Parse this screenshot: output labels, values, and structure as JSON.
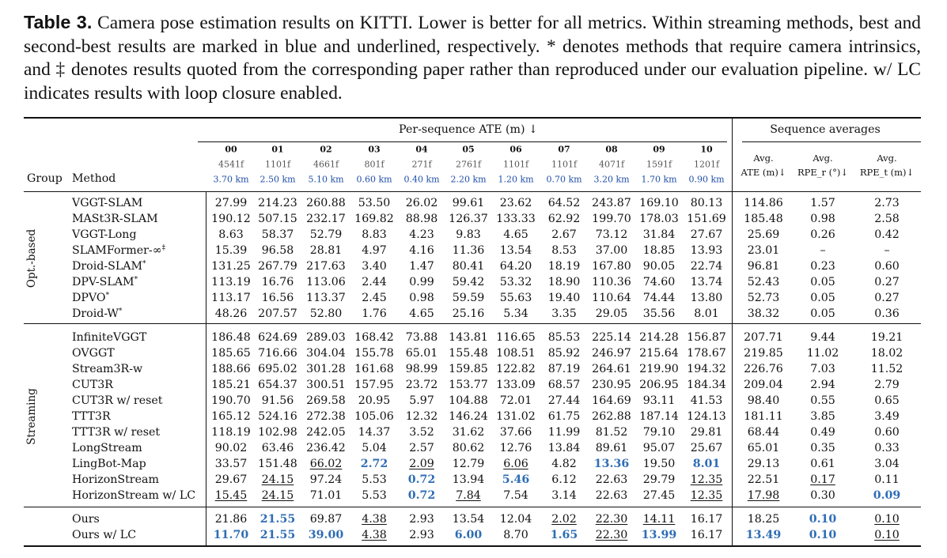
{
  "caption": {
    "label": "Table 3.",
    "text": " Camera pose estimation results on KITTI. Lower is better for all metrics. Within streaming methods, best and second-best results are marked in blue and underlined, respectively. * denotes methods that require camera intrinsics, and ‡ denotes results quoted from the corresponding paper rather than reproduced under our evaluation pipeline. w/ LC indicates results with loop closure enabled."
  },
  "header": {
    "per_sequence": "Per-sequence ATE (m) ↓",
    "averages": "Sequence averages",
    "group_col": "Group",
    "method_col": "Method",
    "sequences": [
      {
        "id": "00",
        "frames": "4541f",
        "km": "3.70 km"
      },
      {
        "id": "01",
        "frames": "1101f",
        "km": "2.50 km"
      },
      {
        "id": "02",
        "frames": "4661f",
        "km": "5.10 km"
      },
      {
        "id": "03",
        "frames": "801f",
        "km": "0.60 km"
      },
      {
        "id": "04",
        "frames": "271f",
        "km": "0.40 km"
      },
      {
        "id": "05",
        "frames": "2761f",
        "km": "2.20 km"
      },
      {
        "id": "06",
        "frames": "1101f",
        "km": "1.20 km"
      },
      {
        "id": "07",
        "frames": "1101f",
        "km": "0.70 km"
      },
      {
        "id": "08",
        "frames": "4071f",
        "km": "3.20 km"
      },
      {
        "id": "09",
        "frames": "1591f",
        "km": "1.70 km"
      },
      {
        "id": "10",
        "frames": "1201f",
        "km": "0.90 km"
      }
    ],
    "avg_cols": [
      {
        "top": "Avg.",
        "bottom": "ATE (m)↓"
      },
      {
        "top": "Avg.",
        "bottom": "RPE_r (°)↓"
      },
      {
        "top": "Avg.",
        "bottom": "RPE_t (m)↓"
      }
    ]
  },
  "groups": [
    {
      "name": "Opt.-based",
      "rows": [
        {
          "method": "VGGT-SLAM",
          "mark": "",
          "values": [
            "27.99",
            "214.23",
            "260.88",
            "53.50",
            "26.02",
            "99.61",
            "23.62",
            "64.52",
            "243.87",
            "169.10",
            "80.13"
          ],
          "avgs": [
            "114.86",
            "1.57",
            "2.73"
          ]
        },
        {
          "method": "MASt3R-SLAM",
          "mark": "",
          "values": [
            "190.12",
            "507.15",
            "232.17",
            "169.82",
            "88.98",
            "126.37",
            "133.33",
            "62.92",
            "199.70",
            "178.03",
            "151.69"
          ],
          "avgs": [
            "185.48",
            "0.98",
            "2.58"
          ]
        },
        {
          "method": "VGGT-Long",
          "mark": "",
          "values": [
            "8.63",
            "58.37",
            "52.79",
            "8.83",
            "4.23",
            "9.83",
            "4.65",
            "2.67",
            "73.12",
            "31.84",
            "27.67"
          ],
          "avgs": [
            "25.69",
            "0.26",
            "0.42"
          ]
        },
        {
          "method": "SLAMFormer-∞",
          "mark": "‡",
          "values": [
            "15.39",
            "96.58",
            "28.81",
            "4.97",
            "4.16",
            "11.36",
            "13.54",
            "8.53",
            "37.00",
            "18.85",
            "13.93"
          ],
          "avgs": [
            "23.01",
            "–",
            "–"
          ]
        },
        {
          "method": "Droid-SLAM",
          "mark": "*",
          "values": [
            "131.25",
            "267.79",
            "217.63",
            "3.40",
            "1.47",
            "80.41",
            "64.20",
            "18.19",
            "167.80",
            "90.05",
            "22.74"
          ],
          "avgs": [
            "96.81",
            "0.23",
            "0.60"
          ]
        },
        {
          "method": "DPV-SLAM",
          "mark": "*",
          "values": [
            "113.19",
            "16.76",
            "113.06",
            "2.44",
            "0.99",
            "59.42",
            "53.32",
            "18.90",
            "110.36",
            "74.60",
            "13.74"
          ],
          "avgs": [
            "52.43",
            "0.05",
            "0.27"
          ]
        },
        {
          "method": "DPVO",
          "mark": "*",
          "values": [
            "113.17",
            "16.56",
            "113.37",
            "2.45",
            "0.98",
            "59.59",
            "55.63",
            "19.40",
            "110.64",
            "74.44",
            "13.80"
          ],
          "avgs": [
            "52.73",
            "0.05",
            "0.27"
          ]
        },
        {
          "method": "Droid-W",
          "mark": "*",
          "values": [
            "48.26",
            "207.57",
            "52.80",
            "1.76",
            "4.65",
            "25.16",
            "5.34",
            "3.35",
            "29.05",
            "35.56",
            "8.01"
          ],
          "avgs": [
            "38.32",
            "0.05",
            "0.36"
          ]
        }
      ]
    },
    {
      "name": "Streaming",
      "rows": [
        {
          "method": "InfiniteVGGT",
          "mark": "",
          "values": [
            "186.48",
            "624.69",
            "289.03",
            "168.42",
            "73.88",
            "143.81",
            "116.65",
            "85.53",
            "225.14",
            "214.28",
            "156.87"
          ],
          "avgs": [
            "207.71",
            "9.44",
            "19.21"
          ]
        },
        {
          "method": "OVGGT",
          "mark": "",
          "values": [
            "185.65",
            "716.66",
            "304.04",
            "155.78",
            "65.01",
            "155.48",
            "108.51",
            "85.92",
            "246.97",
            "215.64",
            "178.67"
          ],
          "avgs": [
            "219.85",
            "11.02",
            "18.02"
          ]
        },
        {
          "method": "Stream3R-w",
          "mark": "",
          "values": [
            "188.66",
            "695.02",
            "301.28",
            "161.68",
            "98.99",
            "159.85",
            "122.82",
            "87.19",
            "264.61",
            "219.90",
            "194.32"
          ],
          "avgs": [
            "226.76",
            "7.03",
            "11.52"
          ]
        },
        {
          "method": "CUT3R",
          "mark": "",
          "values": [
            "185.21",
            "654.37",
            "300.51",
            "157.95",
            "23.72",
            "153.77",
            "133.09",
            "68.57",
            "230.95",
            "206.95",
            "184.34"
          ],
          "avgs": [
            "209.04",
            "2.94",
            "2.79"
          ]
        },
        {
          "method": "CUT3R w/ reset",
          "mark": "",
          "values": [
            "190.70",
            "91.56",
            "269.58",
            "20.95",
            "5.97",
            "104.88",
            "72.01",
            "27.44",
            "164.69",
            "93.11",
            "41.53"
          ],
          "avgs": [
            "98.40",
            "0.55",
            "0.65"
          ]
        },
        {
          "method": "TTT3R",
          "mark": "",
          "values": [
            "165.12",
            "524.16",
            "272.38",
            "105.06",
            "12.32",
            "146.24",
            "131.02",
            "61.75",
            "262.88",
            "187.14",
            "124.13"
          ],
          "avgs": [
            "181.11",
            "3.85",
            "3.49"
          ]
        },
        {
          "method": "TTT3R w/ reset",
          "mark": "",
          "values": [
            "118.19",
            "102.98",
            "242.05",
            "14.37",
            "3.52",
            "31.62",
            "37.66",
            "11.99",
            "81.52",
            "79.10",
            "29.81"
          ],
          "avgs": [
            "68.44",
            "0.49",
            "0.60"
          ]
        },
        {
          "method": "LongStream",
          "mark": "",
          "values": [
            "90.02",
            "63.46",
            "236.42",
            "5.04",
            "2.57",
            "80.62",
            "12.76",
            "13.84",
            "89.61",
            "95.07",
            "25.67"
          ],
          "avgs": [
            "65.01",
            "0.35",
            "0.33"
          ]
        },
        {
          "method": "LingBot-Map",
          "mark": "",
          "values": [
            "33.57",
            "151.48",
            "66.02",
            "2.72",
            "2.09",
            "12.79",
            "6.06",
            "4.82",
            "13.36",
            "19.50",
            "8.01"
          ],
          "avgs": [
            "29.13",
            "0.61",
            "3.04"
          ],
          "styles": [
            "",
            "",
            "u",
            "b",
            "u",
            "",
            "u",
            "",
            "b",
            "",
            "b"
          ],
          "avg_styles": [
            "",
            "",
            ""
          ]
        },
        {
          "method": "HorizonStream",
          "mark": "",
          "values": [
            "29.67",
            "24.15",
            "97.24",
            "5.53",
            "0.72",
            "13.94",
            "5.46",
            "6.12",
            "22.63",
            "29.79",
            "12.35"
          ],
          "avgs": [
            "22.51",
            "0.17",
            "0.11"
          ],
          "styles": [
            "",
            "u",
            "",
            "",
            "b",
            "",
            "b",
            "",
            "",
            "",
            "u"
          ],
          "avg_styles": [
            "",
            "u",
            ""
          ]
        },
        {
          "method": "HorizonStream w/ LC",
          "mark": "",
          "values": [
            "15.45",
            "24.15",
            "71.01",
            "5.53",
            "0.72",
            "7.84",
            "7.54",
            "3.14",
            "22.63",
            "27.45",
            "12.35"
          ],
          "avgs": [
            "17.98",
            "0.30",
            "0.09"
          ],
          "styles": [
            "u",
            "u",
            "",
            "",
            "b",
            "u",
            "",
            "",
            "",
            "",
            "u"
          ],
          "avg_styles": [
            "u",
            "",
            "b"
          ]
        }
      ]
    },
    {
      "name": "",
      "rows": [
        {
          "method": "Ours",
          "mark": "",
          "values": [
            "21.86",
            "21.55",
            "69.87",
            "4.38",
            "2.93",
            "13.54",
            "12.04",
            "2.02",
            "22.30",
            "14.11",
            "16.17"
          ],
          "avgs": [
            "18.25",
            "0.10",
            "0.10"
          ],
          "styles": [
            "",
            "b",
            "",
            "u",
            "",
            "",
            "",
            "u",
            "u",
            "u",
            ""
          ],
          "avg_styles": [
            "",
            "b",
            "u"
          ]
        },
        {
          "method": "Ours w/ LC",
          "mark": "",
          "values": [
            "11.70",
            "21.55",
            "39.00",
            "4.38",
            "2.93",
            "6.00",
            "8.70",
            "1.65",
            "22.30",
            "13.99",
            "16.17"
          ],
          "avgs": [
            "13.49",
            "0.10",
            "0.10"
          ],
          "styles": [
            "b",
            "b",
            "b",
            "u",
            "",
            "b",
            "",
            "b",
            "u",
            "b",
            ""
          ],
          "avg_styles": [
            "b",
            "b",
            "u"
          ]
        }
      ]
    }
  ]
}
